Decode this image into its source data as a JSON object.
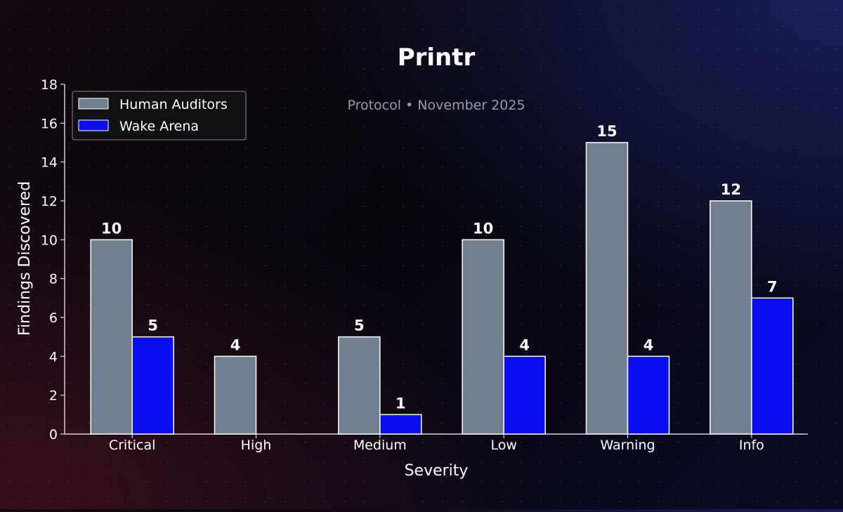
{
  "chart_data": {
    "type": "bar",
    "title": "Printr",
    "subtitle": "Protocol • November 2025",
    "xlabel": "Severity",
    "ylabel": "Findings Discovered",
    "categories": [
      "Critical",
      "High",
      "Medium",
      "Low",
      "Warning",
      "Info"
    ],
    "series": [
      {
        "name": "Human Auditors",
        "values": [
          10,
          4,
          5,
          10,
          15,
          12
        ],
        "color": "#708090"
      },
      {
        "name": "Wake Arena",
        "values": [
          5,
          0,
          1,
          4,
          4,
          7
        ],
        "color": "#0a0ff0"
      }
    ],
    "ylim": [
      0,
      18
    ],
    "yticks": [
      0,
      2,
      4,
      6,
      8,
      10,
      12,
      14,
      16,
      18
    ],
    "legend_position": "top-left",
    "grid": false
  }
}
